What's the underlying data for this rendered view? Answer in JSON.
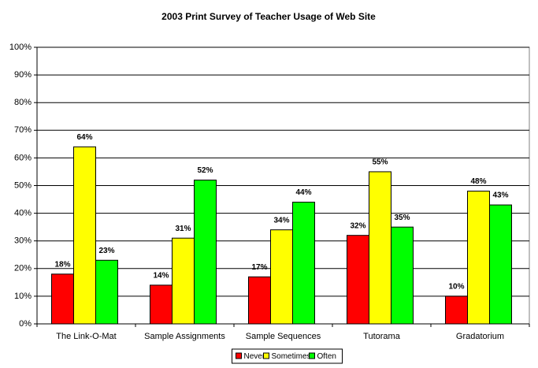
{
  "chart_data": {
    "type": "bar",
    "title": "2003 Print Survey of Teacher Usage of Web Site",
    "categories": [
      "The Link-O-Mat",
      "Sample Assignments",
      "Sample Sequences",
      "Tutorama",
      "Gradatorium"
    ],
    "series": [
      {
        "name": "Never",
        "color": "#ff0000",
        "values": [
          18,
          14,
          17,
          32,
          10
        ],
        "value_labels": [
          "18%",
          "14%",
          "17%",
          "32%",
          "10%"
        ]
      },
      {
        "name": "Sometimes",
        "color": "#ffff00",
        "values": [
          64,
          31,
          34,
          55,
          48
        ],
        "value_labels": [
          "64%",
          "31%",
          "34%",
          "55%",
          "48%"
        ]
      },
      {
        "name": "Often",
        "color": "#00ff00",
        "values": [
          23,
          52,
          44,
          35,
          43
        ],
        "value_labels": [
          "23%",
          "52%",
          "44%",
          "35%",
          "43%"
        ]
      }
    ],
    "ylim": [
      0,
      100
    ],
    "yticks": [
      {
        "value": 0,
        "label": "0%"
      },
      {
        "value": 10,
        "label": "10%"
      },
      {
        "value": 20,
        "label": "20%"
      },
      {
        "value": 30,
        "label": "30%"
      },
      {
        "value": 40,
        "label": "40%"
      },
      {
        "value": 50,
        "label": "50%"
      },
      {
        "value": 60,
        "label": "60%"
      },
      {
        "value": 70,
        "label": "70%"
      },
      {
        "value": 80,
        "label": "80%"
      },
      {
        "value": 90,
        "label": "90%"
      },
      {
        "value": 100,
        "label": "100%"
      }
    ],
    "grid": true,
    "legend": "bottom"
  }
}
